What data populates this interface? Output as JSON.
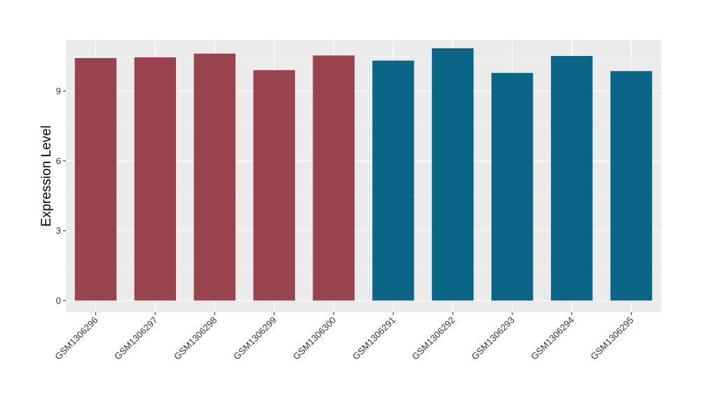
{
  "chart_data": {
    "type": "bar",
    "title": "",
    "xlabel": "",
    "ylabel": "Expression Level",
    "categories": [
      "GSM1306296",
      "GSM1306297",
      "GSM1306298",
      "GSM1306299",
      "GSM1306300",
      "GSM1306291",
      "GSM1306292",
      "GSM1306293",
      "GSM1306294",
      "GSM1306295"
    ],
    "values": [
      10.42,
      10.45,
      10.61,
      9.9,
      10.53,
      10.31,
      10.84,
      9.78,
      10.51,
      9.86
    ],
    "group": [
      0,
      0,
      0,
      0,
      0,
      1,
      1,
      1,
      1,
      1
    ],
    "group_colors": [
      "#99434F",
      "#0B6587"
    ],
    "ylim": [
      -0.5,
      11.2
    ],
    "yticks": [
      0,
      3,
      6,
      9
    ],
    "ytick_labels": [
      "0",
      "3",
      "6",
      "9"
    ],
    "grid": true,
    "legend": "none",
    "panel_color": "#EBEBEB",
    "grid_color": "#FFFFFF"
  }
}
